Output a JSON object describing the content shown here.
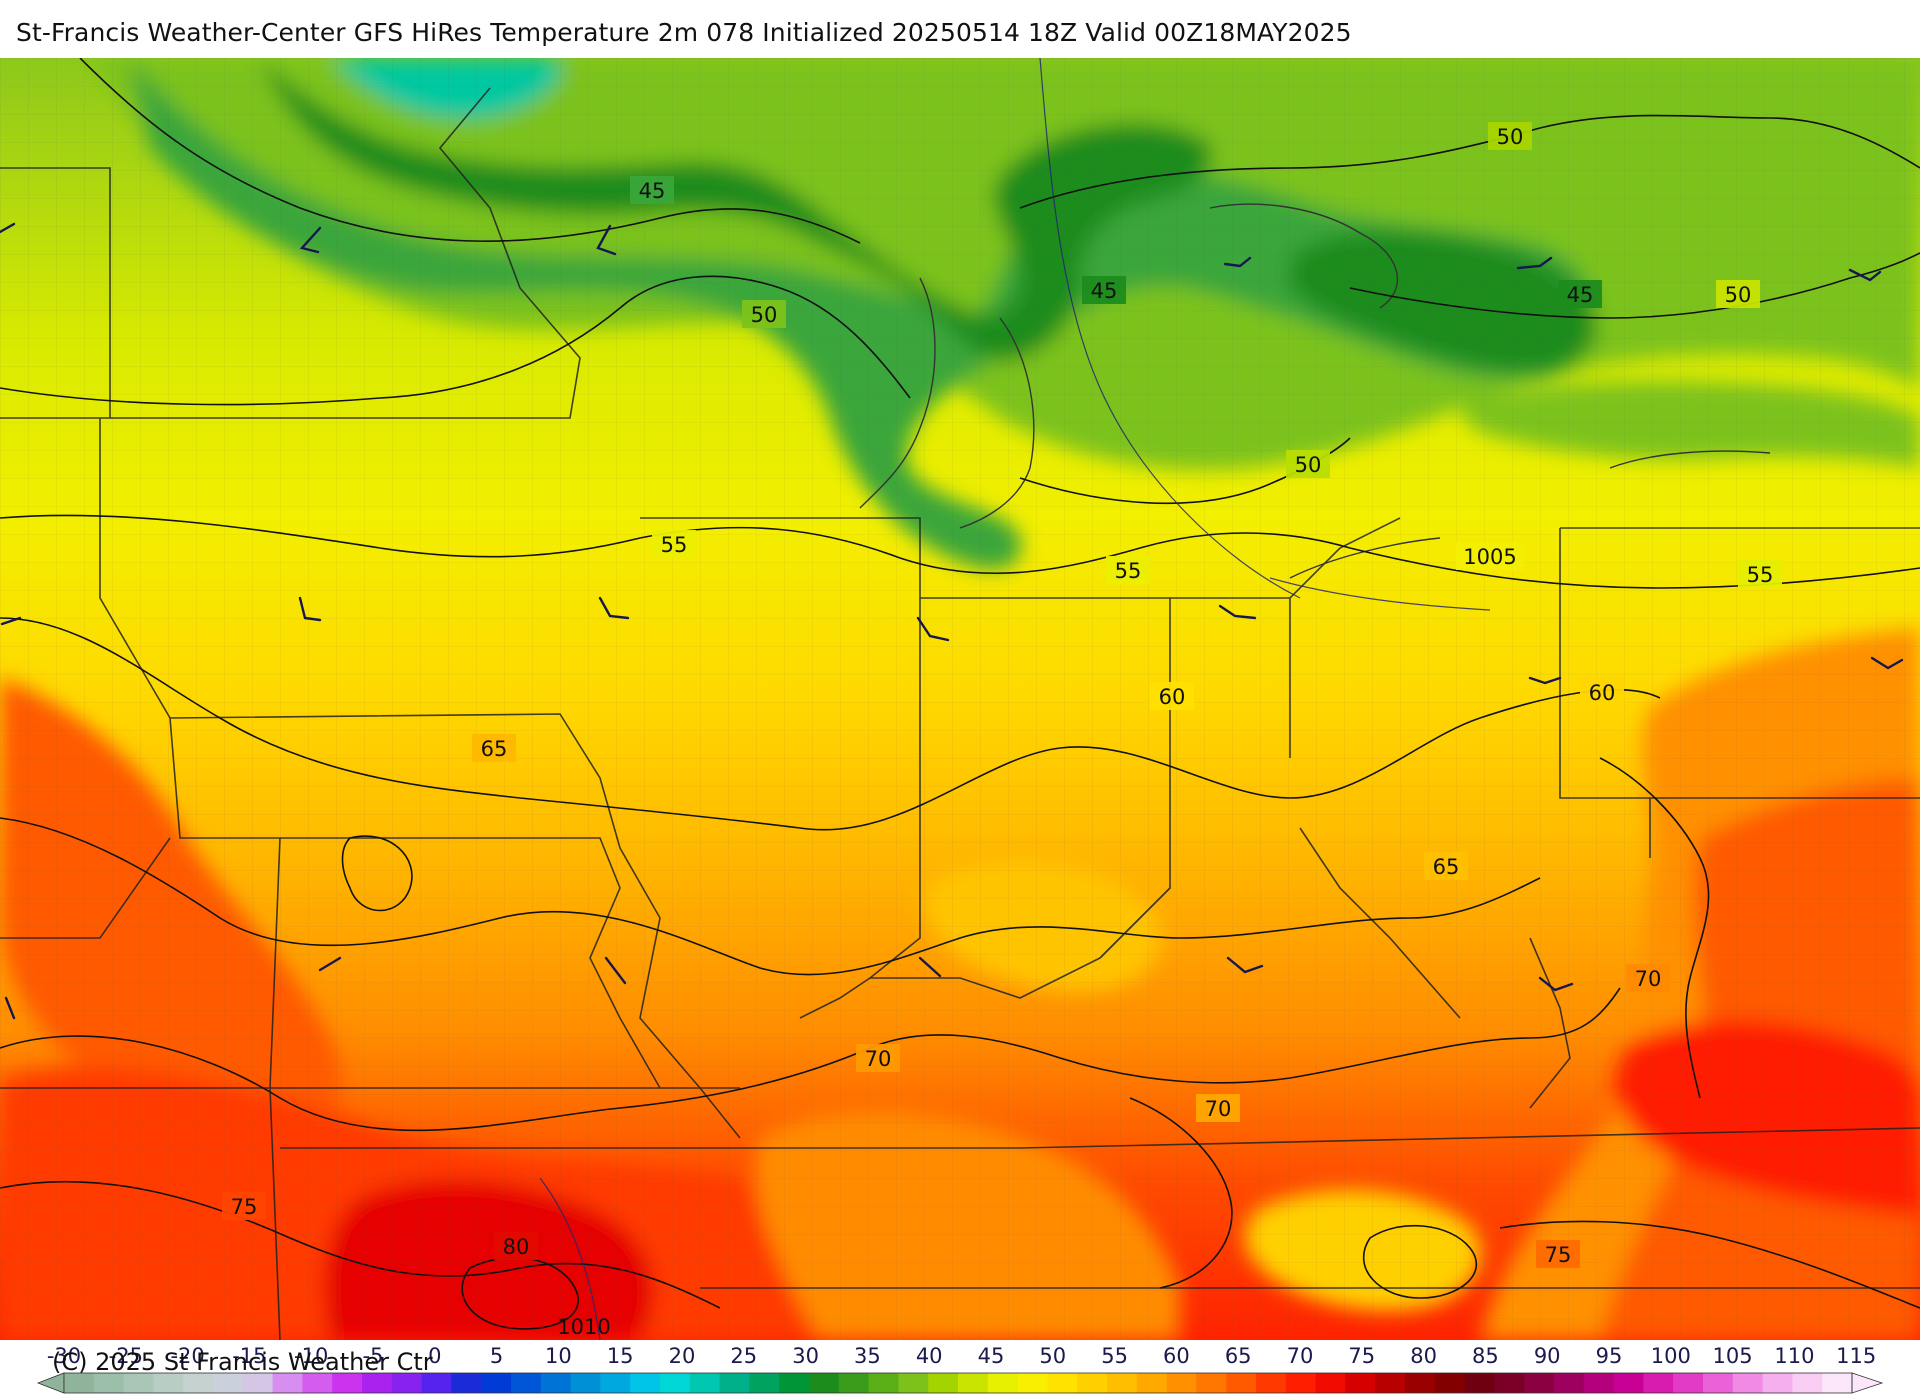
{
  "title": "St-Francis Weather-Center GFS HiRes Temperature 2m  078 Initialized 20250514 18Z Valid 00Z18MAY2025",
  "copyright": "(C) 2025 St Francis Weather Ctr",
  "map": {
    "temperature_labels": [
      "45",
      "45",
      "45",
      "50",
      "50",
      "50",
      "50",
      "55",
      "55",
      "55",
      "60",
      "60",
      "65",
      "65",
      "70",
      "70",
      "70",
      "75",
      "75",
      "80"
    ],
    "pressure_labels": [
      "1005",
      "1010"
    ],
    "colors": {
      "cold_40": "#1a9640",
      "cold_45": "#3aa63a",
      "cold_50": "#7cc21a",
      "mid_55": "#c9e400",
      "mid_60": "#f2ef00",
      "warm_65": "#ffd700",
      "warm_70": "#ffb300",
      "warm_75": "#ff8c00",
      "hot_80": "#ff5a00",
      "hot_85": "#ff1e00",
      "hot_90": "#d60000"
    }
  },
  "colorbar": {
    "labels": [
      "-30",
      "-25",
      "-20",
      "-15",
      "-10",
      "-5",
      "0",
      "5",
      "10",
      "15",
      "20",
      "25",
      "30",
      "35",
      "40",
      "45",
      "50",
      "55",
      "60",
      "65",
      "70",
      "75",
      "80",
      "85",
      "90",
      "95",
      "100",
      "105",
      "110",
      "115"
    ],
    "colors": [
      "#8fb39b",
      "#9bbfa8",
      "#a9c6b7",
      "#b8cdc3",
      "#c5d2d0",
      "#cad1dc",
      "#d6c6e6",
      "#d88ef0",
      "#d45df0",
      "#cc33ee",
      "#aa22ee",
      "#8822ee",
      "#5522ee",
      "#1c2bd8",
      "#003bd6",
      "#0056d6",
      "#0073d6",
      "#0090d6",
      "#00a8e0",
      "#00c4e8",
      "#00d6d6",
      "#00c8b0",
      "#00b08a",
      "#00a260",
      "#009535",
      "#1c8c1c",
      "#3a9c1a",
      "#5aae16",
      "#7cc21a",
      "#a4d400",
      "#c9e400",
      "#e6f000",
      "#f8f000",
      "#ffe200",
      "#ffd000",
      "#ffbe00",
      "#ffa800",
      "#ff9000",
      "#ff7600",
      "#ff5a00",
      "#ff3a00",
      "#ff1e00",
      "#f00a00",
      "#d60000",
      "#b80000",
      "#9a0000",
      "#820000",
      "#6e0010",
      "#7a0028",
      "#8a0040",
      "#9e0060",
      "#b4007a",
      "#c80094",
      "#d81cb0",
      "#e23cc6",
      "#ea62d8",
      "#f08ae4",
      "#f5aeee",
      "#f9ccf4",
      "#fbe6fa"
    ]
  }
}
